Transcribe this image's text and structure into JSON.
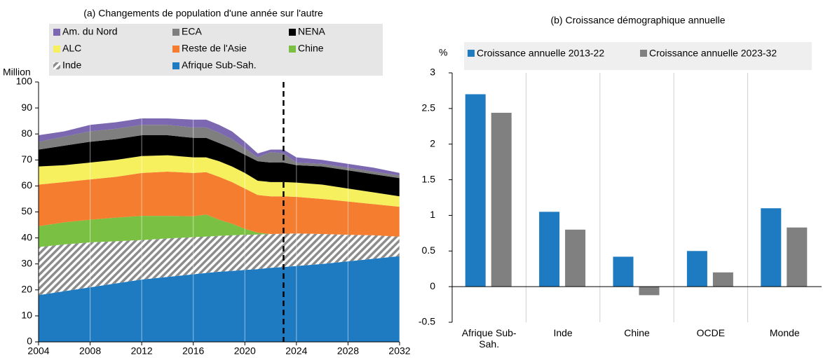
{
  "chart_data": [
    {
      "type": "stacked_area",
      "title": "(a) Changements de population d'une année sur l'autre",
      "y_label": "Million",
      "x": [
        2004,
        2006,
        2008,
        2010,
        2012,
        2014,
        2016,
        2017,
        2018,
        2019,
        2020,
        2021,
        2022,
        2023,
        2024,
        2026,
        2028,
        2030,
        2032
      ],
      "xlim": [
        2004,
        2032
      ],
      "xticks": [
        2004,
        2008,
        2012,
        2016,
        2020,
        2024,
        2028,
        2032
      ],
      "ylim": [
        0,
        100
      ],
      "yticks": [
        0,
        10,
        20,
        30,
        40,
        50,
        60,
        70,
        80,
        90,
        100
      ],
      "grid": true,
      "vline": 2023,
      "series": [
        {
          "name": "Am. du Nord",
          "color": "#7b68b0",
          "values": [
            2.5,
            2,
            2.5,
            2.5,
            2.5,
            2.5,
            3,
            3,
            3,
            3,
            2.5,
            1.5,
            1,
            1.5,
            2,
            1.5,
            1.5,
            1.5,
            1
          ]
        },
        {
          "name": "ECA",
          "color": "#7f7f7f",
          "values": [
            3,
            3.5,
            4,
            4,
            4,
            4,
            4,
            4,
            4,
            3.5,
            2.5,
            1.5,
            4,
            3.5,
            1,
            1,
            1,
            1,
            1
          ]
        },
        {
          "name": "NENA",
          "color": "#000000",
          "values": [
            6.5,
            7.5,
            8,
            8,
            8,
            7.7,
            7.5,
            7.5,
            7,
            7,
            7,
            7.5,
            7.5,
            7.5,
            6.7,
            7,
            7,
            7,
            7
          ]
        },
        {
          "name": "ALC",
          "color": "#f7f05e",
          "values": [
            7,
            6.5,
            6.5,
            6.5,
            6.5,
            6.3,
            6,
            5.7,
            6,
            6,
            6,
            5.5,
            5.5,
            5.5,
            5.5,
            5.5,
            5,
            4.5,
            4
          ]
        },
        {
          "name": "Reste de l'Asie",
          "color": "#f47d30",
          "values": [
            16,
            15.5,
            15.5,
            15.7,
            16.5,
            17,
            16.7,
            16.3,
            16.5,
            16,
            15.5,
            14.5,
            14.5,
            14.4,
            14.1,
            13.5,
            12.8,
            12,
            11.5
          ]
        },
        {
          "name": "Chine",
          "color": "#7ac143",
          "values": [
            8,
            8.5,
            8.7,
            9.1,
            9.3,
            8.7,
            8,
            8.5,
            6.2,
            4.5,
            2.3,
            0.7,
            0,
            0,
            0,
            0,
            0,
            0,
            0
          ]
        },
        {
          "name": "Inde",
          "color": "#8c8c8c",
          "hatch": true,
          "values": [
            18.5,
            18,
            17.3,
            16.2,
            15.2,
            14.8,
            14.3,
            14,
            13.8,
            13.7,
            13.5,
            13.3,
            13,
            12.8,
            12.5,
            11.5,
            10.2,
            9,
            7.5
          ]
        },
        {
          "name": "Afrique Sub-Sah.",
          "color": "#1f7bc1",
          "values": [
            18,
            19.5,
            21,
            22.5,
            24,
            25,
            26,
            26.5,
            27,
            27.3,
            27.7,
            28,
            28.5,
            28.8,
            29.2,
            30,
            31,
            32,
            33
          ]
        }
      ]
    },
    {
      "type": "bar",
      "title": "(b) Croissance démographique annuelle",
      "y_label": "%",
      "categories": [
        "Afrique Sub-Sah.",
        "Inde",
        "Chine",
        "OCDE",
        "Monde"
      ],
      "ylim": [
        -0.5,
        3
      ],
      "yticks": [
        -0.5,
        0,
        0.5,
        1,
        1.5,
        2,
        2.5,
        3
      ],
      "series": [
        {
          "name": "Croissance annuelle 2013-22",
          "color": "#1f7bc1",
          "values": [
            2.7,
            1.05,
            0.42,
            0.5,
            1.1
          ]
        },
        {
          "name": "Croissance annuelle 2023-32",
          "color": "#808080",
          "values": [
            2.44,
            0.8,
            -0.12,
            0.2,
            0.83
          ]
        }
      ]
    }
  ]
}
